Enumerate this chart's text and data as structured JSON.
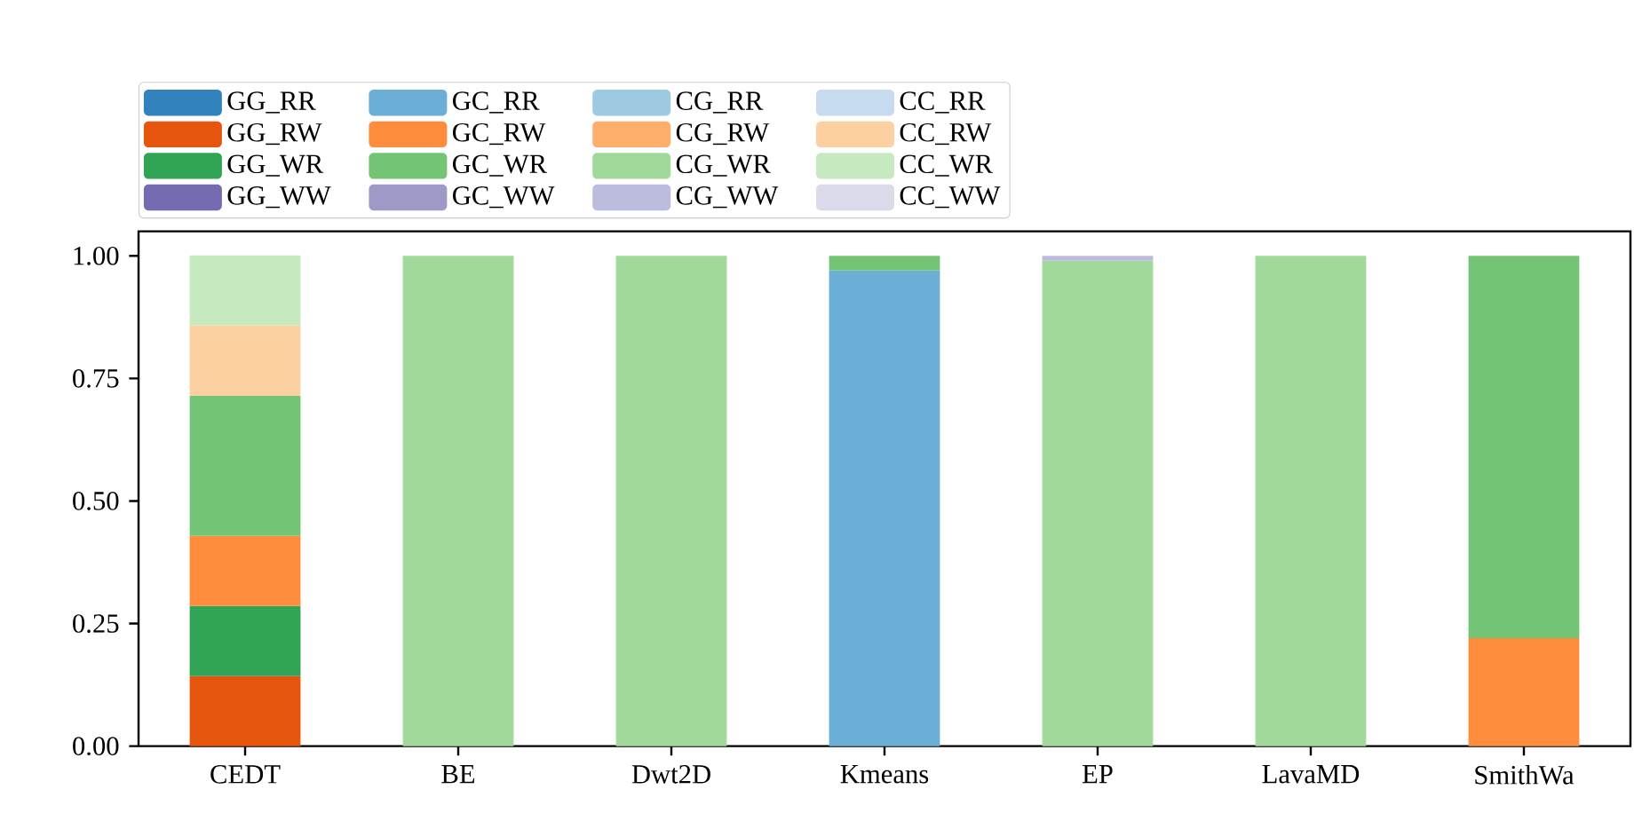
{
  "chart_data": {
    "type": "bar",
    "stacked": true,
    "categories": [
      "CEDT",
      "BE",
      "Dwt2D",
      "Kmeans",
      "EP",
      "LavaMD",
      "SmithWa"
    ],
    "ylim": [
      0,
      1.05
    ],
    "yticks": [
      {
        "value": 0,
        "label": "0.00"
      },
      {
        "value": 0.25,
        "label": "0.25"
      },
      {
        "value": 0.5,
        "label": "0.50"
      },
      {
        "value": 0.75,
        "label": "0.75"
      },
      {
        "value": 1,
        "label": "1.00"
      }
    ],
    "legend": "top",
    "grid": false,
    "series": [
      {
        "name": "GG_RR",
        "color": "#3182bd",
        "values": [
          0,
          0,
          0,
          0,
          0,
          0,
          0
        ]
      },
      {
        "name": "GG_RW",
        "color": "#e6550d",
        "values": [
          0.143,
          0,
          0,
          0,
          0,
          0,
          0
        ]
      },
      {
        "name": "GG_WR",
        "color": "#31a354",
        "values": [
          0.143,
          0,
          0,
          0,
          0,
          0,
          0
        ]
      },
      {
        "name": "GG_WW",
        "color": "#756bb1",
        "values": [
          0,
          0,
          0,
          0,
          0,
          0,
          0
        ]
      },
      {
        "name": "GC_RR",
        "color": "#6baed6",
        "values": [
          0,
          0,
          0,
          0.97,
          0,
          0,
          0
        ]
      },
      {
        "name": "GC_RW",
        "color": "#fd8d3c",
        "values": [
          0.143,
          0,
          0,
          0,
          0,
          0,
          0.22
        ]
      },
      {
        "name": "GC_WR",
        "color": "#74c476",
        "values": [
          0.286,
          0,
          0,
          0.03,
          0,
          0,
          0.78
        ]
      },
      {
        "name": "GC_WW",
        "color": "#9e9ac8",
        "values": [
          0,
          0,
          0,
          0,
          0,
          0,
          0
        ]
      },
      {
        "name": "CG_RR",
        "color": "#9ecae1",
        "values": [
          0,
          0,
          0,
          0,
          0,
          0,
          0
        ]
      },
      {
        "name": "CG_RW",
        "color": "#fdae6b",
        "values": [
          0,
          0,
          0,
          0,
          0,
          0,
          0
        ]
      },
      {
        "name": "CG_WR",
        "color": "#a1d99b",
        "values": [
          0,
          1,
          1,
          0,
          0.99,
          1,
          0
        ]
      },
      {
        "name": "CG_WW",
        "color": "#bcbddc",
        "values": [
          0,
          0,
          0,
          0,
          0.01,
          0,
          0
        ]
      },
      {
        "name": "CC_RR",
        "color": "#c6dbef",
        "values": [
          0,
          0,
          0,
          0,
          0,
          0,
          0
        ]
      },
      {
        "name": "CC_RW",
        "color": "#fdd0a2",
        "values": [
          0.143,
          0,
          0,
          0,
          0,
          0,
          0
        ]
      },
      {
        "name": "CC_WR",
        "color": "#c7e9c0",
        "values": [
          0.143,
          0,
          0,
          0,
          0,
          0,
          0
        ]
      },
      {
        "name": "CC_WW",
        "color": "#dadaeb",
        "values": [
          0,
          0,
          0,
          0,
          0,
          0,
          0
        ]
      }
    ]
  }
}
